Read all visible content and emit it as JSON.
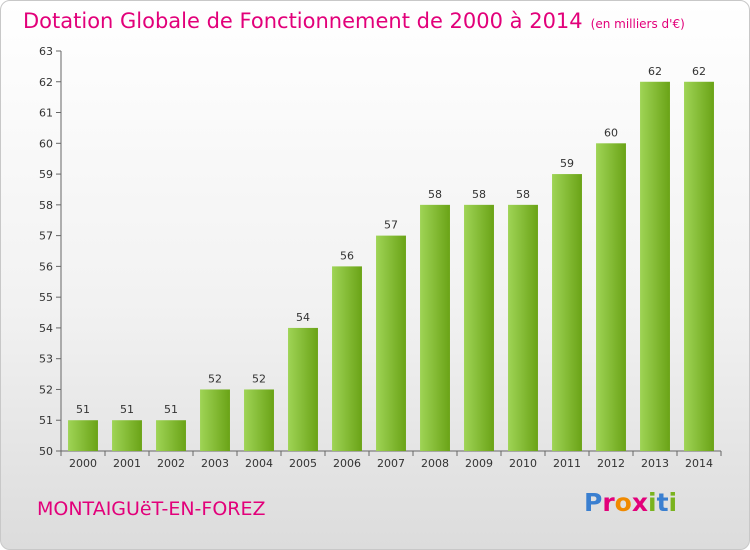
{
  "header": {
    "title": "Dotation Globale de Fonctionnement de 2000 à 2014",
    "subtitle": "(en milliers d'€)"
  },
  "footer": {
    "city": "MONTAIGUëT-EN-FOREZ",
    "logo": "Proxiti"
  },
  "colors": {
    "title": "#e2007a",
    "bar_light": "#9fd456",
    "bar_dark": "#6aa316",
    "logo_letters": [
      "#3a7fd0",
      "#e2007a",
      "#f08a00",
      "#e2007a",
      "#7ab31e",
      "#3a7fd0",
      "#7ab31e"
    ]
  },
  "chart_data": {
    "type": "bar",
    "title": "Dotation Globale de Fonctionnement de 2000 à 2014",
    "subtitle": "(en milliers d'€)",
    "xlabel": "",
    "ylabel": "",
    "categories": [
      "2000",
      "2001",
      "2002",
      "2003",
      "2004",
      "2005",
      "2006",
      "2007",
      "2008",
      "2009",
      "2010",
      "2011",
      "2012",
      "2013",
      "2014"
    ],
    "values": [
      51,
      51,
      51,
      52,
      52,
      54,
      56,
      57,
      58,
      58,
      58,
      59,
      60,
      62,
      62
    ],
    "ylim": [
      50,
      63
    ],
    "yticks": [
      50,
      51,
      52,
      53,
      54,
      55,
      56,
      57,
      58,
      59,
      60,
      61,
      62,
      63
    ],
    "grid": false,
    "legend": "none"
  }
}
